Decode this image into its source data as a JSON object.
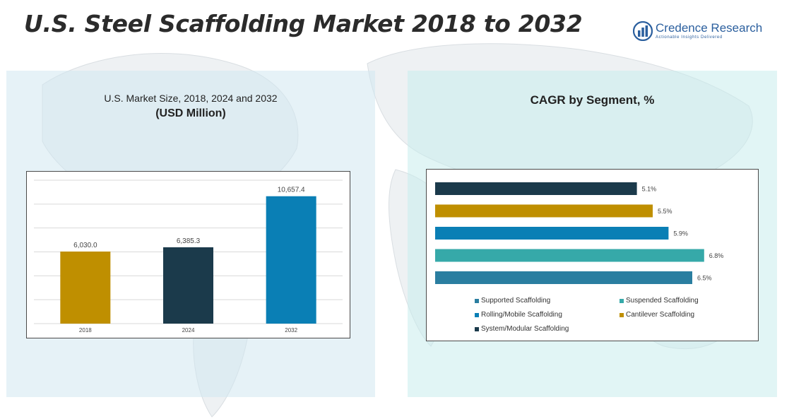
{
  "header": {
    "title": "U.S. Steel Scaffolding Market 2018 to 2032",
    "logo_name": "Credence Research",
    "logo_tagline": "Actionable Insights Delivered"
  },
  "left_panel": {
    "title": "U.S. Market Size, 2018, 2024 and 2032",
    "subtitle": "(USD Million)"
  },
  "right_panel": {
    "title": "CAGR by Segment, %"
  },
  "colors": {
    "gold": "#bf8f00",
    "navy": "#1b3a4b",
    "blue": "#0a7fb5",
    "teal": "#36a9a9",
    "steel": "#2a7ea0"
  },
  "chart_data": [
    {
      "type": "bar",
      "title": "U.S. Market Size, 2018, 2024 and 2032",
      "ylabel": "(USD Million)",
      "categories": [
        "2018",
        "2024",
        "2032"
      ],
      "values": [
        6030.0,
        6385.3,
        10657.4
      ],
      "value_labels": [
        "6,030.0",
        "6,385.3",
        "10,657.4"
      ],
      "bar_colors": [
        "#bf8f00",
        "#1b3a4b",
        "#0a7fb5"
      ],
      "ylim": [
        0,
        12000
      ],
      "grid": true
    },
    {
      "type": "bar",
      "orientation": "horizontal",
      "title": "CAGR by Segment, %",
      "categories": [
        "System/Modular Scaffolding",
        "Cantilever Scaffolding",
        "Rolling/Mobile Scaffolding",
        "Suspended Scaffolding",
        "Supported Scaffolding"
      ],
      "values": [
        5.1,
        5.5,
        5.9,
        6.8,
        6.5
      ],
      "value_labels": [
        "5.1%",
        "5.5%",
        "5.9%",
        "6.8%",
        "6.5%"
      ],
      "bar_colors": [
        "#1b3a4b",
        "#bf8f00",
        "#0a7fb5",
        "#36a9a9",
        "#2a7ea0"
      ],
      "legend": [
        {
          "label": "Supported Scaffolding",
          "color": "#2a7ea0"
        },
        {
          "label": "Suspended Scaffolding",
          "color": "#36a9a9"
        },
        {
          "label": "Rolling/Mobile Scaffolding",
          "color": "#0a7fb5"
        },
        {
          "label": "Cantilever Scaffolding",
          "color": "#bf8f00"
        },
        {
          "label": "System/Modular Scaffolding",
          "color": "#1b3a4b"
        }
      ],
      "legend_position": "bottom",
      "xlim": [
        0,
        7.5
      ]
    }
  ]
}
